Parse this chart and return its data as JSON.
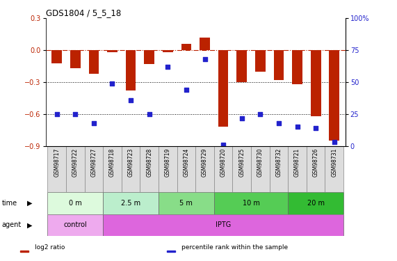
{
  "title": "GDS1804 / 5_5_18",
  "samples": [
    "GSM98717",
    "GSM98722",
    "GSM98727",
    "GSM98718",
    "GSM98723",
    "GSM98728",
    "GSM98719",
    "GSM98724",
    "GSM98729",
    "GSM98720",
    "GSM98725",
    "GSM98730",
    "GSM98732",
    "GSM98721",
    "GSM98726",
    "GSM98731"
  ],
  "log2_ratio": [
    -0.12,
    -0.17,
    -0.22,
    -0.02,
    -0.38,
    -0.13,
    -0.02,
    0.06,
    0.12,
    -0.72,
    -0.3,
    -0.2,
    -0.28,
    -0.32,
    -0.62,
    -0.85
  ],
  "percentile_rank": [
    25,
    25,
    18,
    49,
    36,
    25,
    62,
    44,
    68,
    1,
    22,
    25,
    18,
    15,
    14,
    3
  ],
  "time_groups": [
    {
      "label": "0 m",
      "start": 0,
      "end": 3,
      "color": "#ddfadd"
    },
    {
      "label": "2.5 m",
      "start": 3,
      "end": 6,
      "color": "#bbeecc"
    },
    {
      "label": "5 m",
      "start": 6,
      "end": 9,
      "color": "#88dd88"
    },
    {
      "label": "10 m",
      "start": 9,
      "end": 13,
      "color": "#55cc55"
    },
    {
      "label": "20 m",
      "start": 13,
      "end": 16,
      "color": "#33bb33"
    }
  ],
  "agent_groups": [
    {
      "label": "control",
      "start": 0,
      "end": 3,
      "color": "#eeaaee"
    },
    {
      "label": "IPTG",
      "start": 3,
      "end": 16,
      "color": "#dd66dd"
    }
  ],
  "bar_color": "#bb2200",
  "dot_color": "#2222cc",
  "ylim_left": [
    -0.9,
    0.3
  ],
  "ylim_right": [
    0,
    100
  ],
  "yticks_left": [
    -0.9,
    -0.6,
    -0.3,
    0.0,
    0.3
  ],
  "yticks_right": [
    0,
    25,
    50,
    75,
    100
  ],
  "dotted_lines": [
    -0.3,
    -0.6
  ],
  "legend_items": [
    {
      "label": "log2 ratio",
      "color": "#bb2200"
    },
    {
      "label": "percentile rank within the sample",
      "color": "#2222cc"
    }
  ]
}
